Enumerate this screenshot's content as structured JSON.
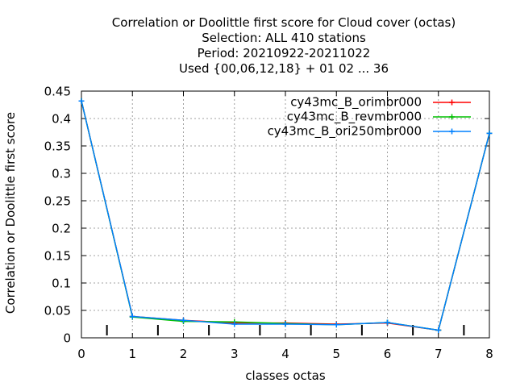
{
  "chart_data": {
    "type": "line",
    "title_lines": [
      "Correlation or Doolittle first score  for Cloud cover (octas)",
      "Selection: ALL    410 stations",
      "Period: 20210922-20211022",
      "Used {00,06,12,18} + 01 02 ... 36"
    ],
    "xlabel": "classes octas",
    "ylabel": "Correlation or Doolittle first score",
    "xlim": [
      0,
      8
    ],
    "ylim": [
      0,
      0.45
    ],
    "x_ticks": [
      "0",
      "1",
      "2",
      "3",
      "4",
      "5",
      "6",
      "7",
      "8"
    ],
    "y_ticks": [
      "0",
      "0.05",
      "0.1",
      "0.15",
      "0.2",
      "0.25",
      "0.3",
      "0.35",
      "0.4",
      "0.45"
    ],
    "grid": true,
    "legend_position": "top-right",
    "x": [
      0,
      1,
      2,
      3,
      4,
      5,
      6,
      7,
      8
    ],
    "series": [
      {
        "name": "cy43mc_B_orimbr000",
        "color": "#ff0000",
        "values": [
          0.432,
          0.039,
          0.032,
          0.027,
          0.027,
          0.025,
          0.027,
          0.014,
          0.373
        ]
      },
      {
        "name": "cy43mc_B_revmbr000",
        "color": "#00c000",
        "values": [
          0.432,
          0.038,
          0.03,
          0.029,
          0.026,
          0.024,
          0.028,
          0.014,
          0.373
        ]
      },
      {
        "name": "cy43mc_B_ori250mbr000",
        "color": "#0080ff",
        "values": [
          0.432,
          0.039,
          0.032,
          0.025,
          0.025,
          0.024,
          0.028,
          0.014,
          0.373
        ]
      }
    ]
  }
}
